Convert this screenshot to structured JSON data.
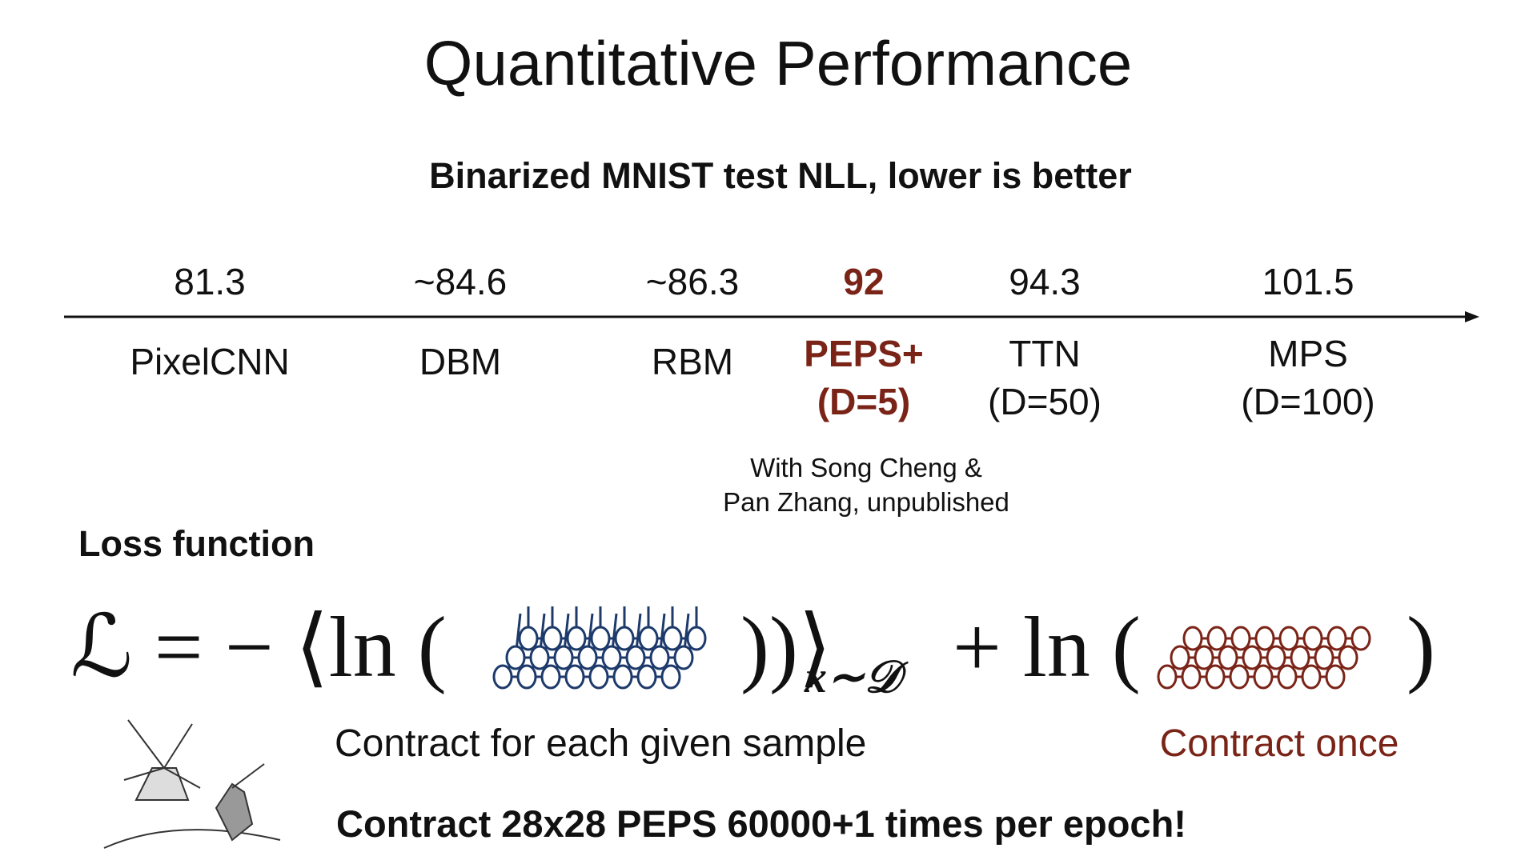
{
  "title": "Quantitative Performance",
  "subtitle": "Binarized MNIST test NLL, lower is better",
  "results": [
    {
      "value": "81.3",
      "label": [
        "PixelCNN"
      ]
    },
    {
      "value": "~84.6",
      "label": [
        "DBM"
      ]
    },
    {
      "value": "~86.3",
      "label": [
        "RBM"
      ]
    },
    {
      "value": "92",
      "label": [
        "PEPS+",
        "(D=5)"
      ]
    },
    {
      "value": "94.3",
      "label": [
        "TTN",
        "(D=50)"
      ]
    },
    {
      "value": "101.5",
      "label": [
        "MPS",
        "(D=100)"
      ]
    }
  ],
  "note": [
    "With Song Cheng &",
    "Pan Zhang, unpublished"
  ],
  "loss_heading": "Loss function",
  "formula": {
    "lhs": "ℒ = − ⟨ln (",
    "close": "))⟩",
    "sub": "x∼𝒟",
    "plus": "+ ln (",
    "end": ")"
  },
  "captions": {
    "left": "Contract for each given sample",
    "right": "Contract once"
  },
  "footer": "Contract 28x28 PEPS 60000+1 times per epoch!"
}
